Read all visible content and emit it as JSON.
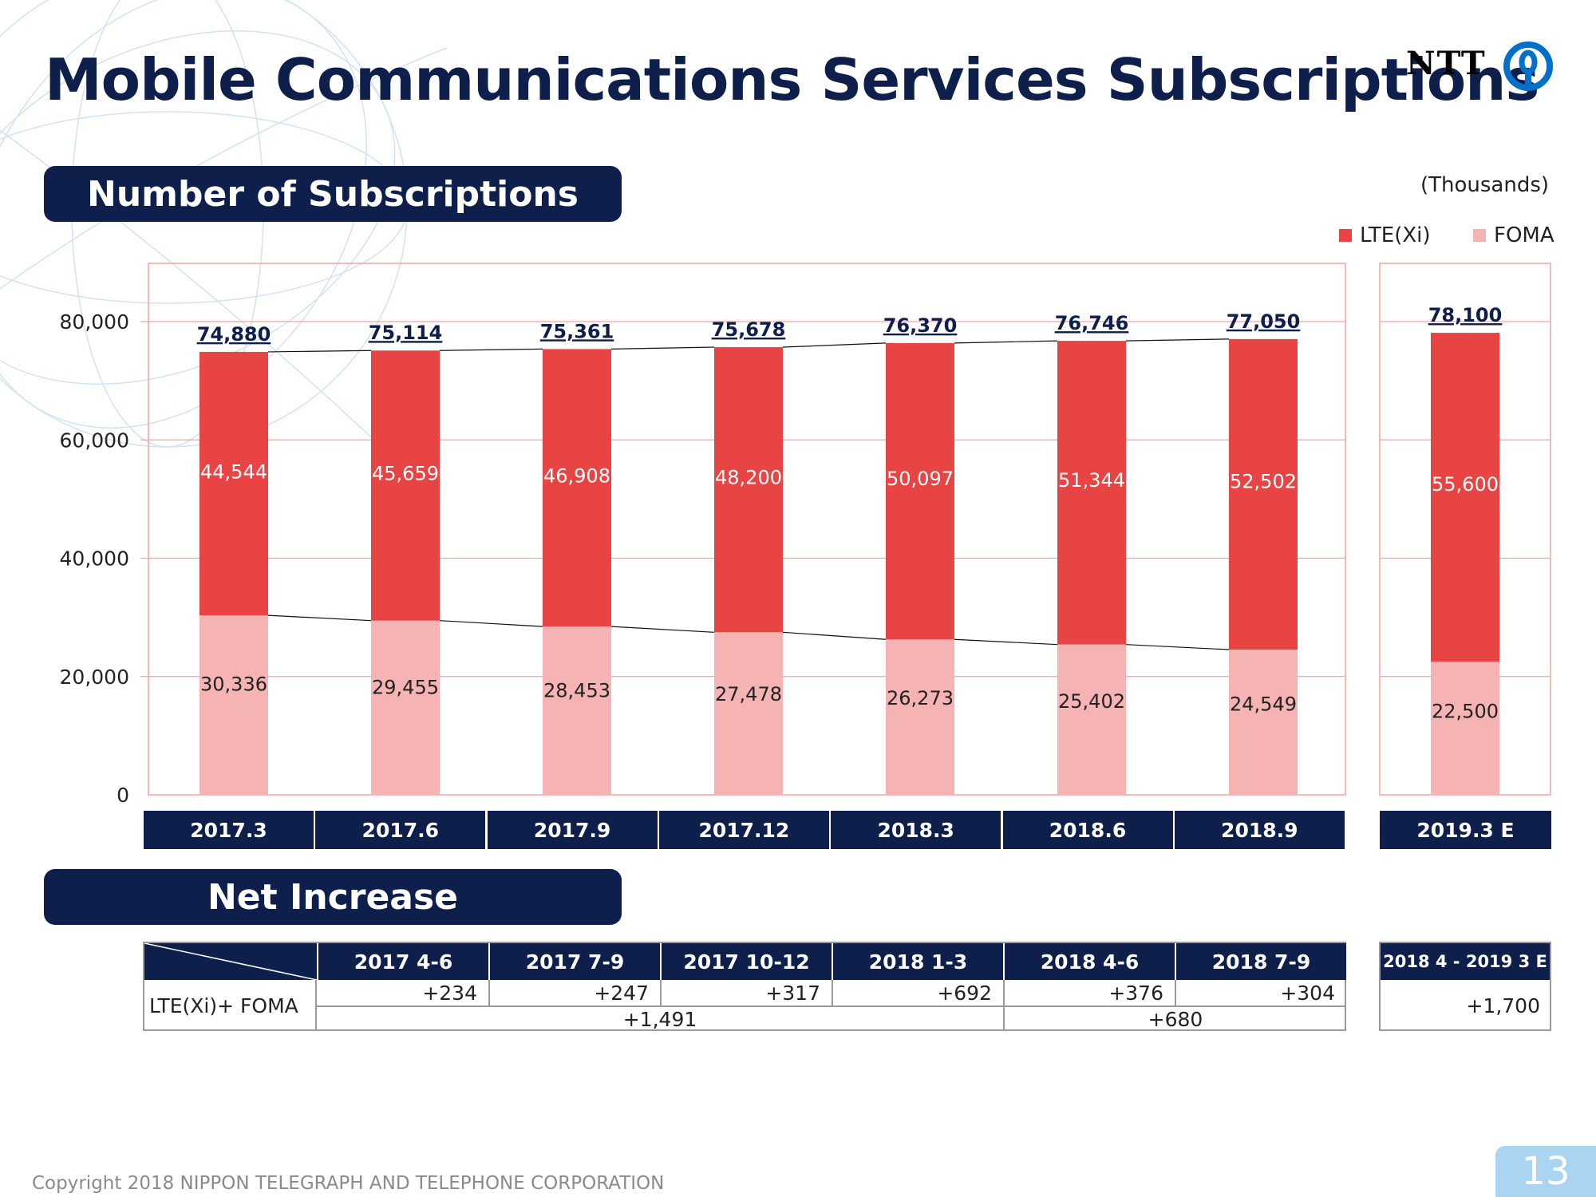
{
  "title": "Mobile Communications Services Subscriptions",
  "logo": {
    "text": "NTT"
  },
  "sections": {
    "subscriptions": "Number of Subscriptions",
    "net_increase": "Net Increase"
  },
  "units": "(Thousands)",
  "legend": {
    "lte": "LTE(Xi)",
    "foma": "FOMA"
  },
  "colors": {
    "lte": "#e84444",
    "foma": "#f5b3b3",
    "navy": "#0f1f4b",
    "grid": "#f2a3a3"
  },
  "chart_data": {
    "type": "bar",
    "stacked": true,
    "categories": [
      "2017.3",
      "2017.6",
      "2017.9",
      "2017.12",
      "2018.3",
      "2018.6",
      "2018.9",
      "2019.3 E"
    ],
    "series": [
      {
        "name": "FOMA",
        "values": [
          30336,
          29455,
          28453,
          27478,
          26273,
          25402,
          24549,
          22500
        ]
      },
      {
        "name": "LTE(Xi)",
        "values": [
          44544,
          45659,
          46908,
          48200,
          50097,
          51344,
          52502,
          55600
        ]
      }
    ],
    "totals": [
      74880,
      75114,
      75361,
      75678,
      76370,
      76746,
      77050,
      78100
    ],
    "value_labels": {
      "foma": [
        "30,336",
        "29,455",
        "28,453",
        "27,478",
        "26,273",
        "25,402",
        "24,549",
        "22,500"
      ],
      "lte": [
        "44,544",
        "45,659",
        "46,908",
        "48,200",
        "50,097",
        "51,344",
        "52,502",
        "55,600"
      ],
      "totals": [
        "74,880",
        "75,114",
        "75,361",
        "75,678",
        "76,370",
        "76,746",
        "77,050",
        "78,100"
      ]
    },
    "ylim": [
      0,
      80000
    ],
    "yticks": [
      0,
      20000,
      40000,
      60000,
      80000
    ],
    "ytick_labels": [
      "0",
      "20,000",
      "40,000",
      "60,000",
      "80,000"
    ],
    "grid": true,
    "legend_position": "top-right"
  },
  "net_increase": {
    "headers": [
      "2017 4-6",
      "2017 7-9",
      "2017 10-12",
      "2018 1-3",
      "2018 4-6",
      "2018 7-9"
    ],
    "row_label": "LTE(Xi)+ FOMA",
    "quarterly": [
      "+234",
      "+247",
      "+317",
      "+692",
      "+376",
      "+304"
    ],
    "fiscal_2017": "+1,491",
    "fiscal_2018_h1": "+680",
    "forecast_header": "2018 4 - 2019 3 E",
    "forecast_value": "+1,700"
  },
  "footer": {
    "copyright": "Copyright 2018 NIPPON TELEGRAPH AND TELEPHONE CORPORATION",
    "page": "13"
  }
}
